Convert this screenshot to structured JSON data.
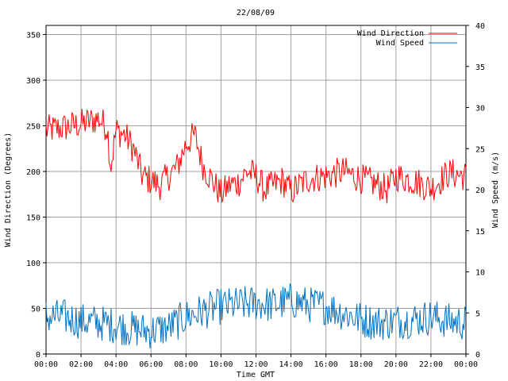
{
  "chart_data": {
    "type": "line",
    "title": "22/08/09",
    "xlabel": "Time GMT",
    "ylabel_left": "Wind Direction (Degrees)",
    "ylabel_right": "Wind Speed (m/s)",
    "x_ticks": [
      "00:00",
      "02:00",
      "04:00",
      "06:00",
      "08:00",
      "10:00",
      "12:00",
      "14:00",
      "16:00",
      "18:00",
      "20:00",
      "22:00",
      "00:00"
    ],
    "x_range_hours": [
      0,
      24
    ],
    "ylim_left": [
      0,
      360
    ],
    "yticks_left": [
      0,
      50,
      100,
      150,
      200,
      250,
      300,
      350
    ],
    "ylim_right": [
      0,
      40
    ],
    "yticks_right": [
      0,
      5,
      10,
      15,
      20,
      25,
      30,
      35,
      40
    ],
    "grid": true,
    "legend_position": "top-right",
    "series": [
      {
        "name": "Wind Direction",
        "axis": "left",
        "color": "#ff0000",
        "x_hours": [
          0,
          1,
          2,
          3,
          3.5,
          3.7,
          4,
          4.5,
          5,
          5.5,
          6,
          6.5,
          7,
          7.5,
          8,
          8.5,
          9,
          9.5,
          10,
          10.5,
          11,
          11.5,
          12,
          12.5,
          13,
          13.5,
          14,
          15,
          16,
          17,
          18,
          19,
          19.5,
          20,
          21,
          22,
          23,
          24
        ],
        "values": [
          245,
          248,
          252,
          258,
          248,
          205,
          245,
          240,
          225,
          195,
          190,
          185,
          195,
          205,
          230,
          240,
          205,
          190,
          175,
          185,
          188,
          200,
          195,
          180,
          185,
          190,
          178,
          192,
          195,
          200,
          192,
          185,
          180,
          195,
          190,
          182,
          198,
          195
        ]
      },
      {
        "name": "Wind Speed",
        "axis": "right",
        "color": "#0070c0",
        "x_hours": [
          0,
          1,
          2,
          3,
          4,
          5,
          6,
          7,
          8,
          9,
          10,
          11,
          12,
          13,
          14,
          15,
          16,
          17,
          18,
          19,
          20,
          21,
          22,
          23,
          24
        ],
        "values": [
          4.5,
          4.5,
          4.0,
          3.8,
          3.5,
          3.0,
          2.8,
          3.2,
          4.5,
          5.2,
          5.8,
          6.0,
          6.2,
          6.0,
          6.5,
          6.0,
          5.8,
          5.0,
          4.2,
          3.8,
          4.0,
          4.2,
          4.5,
          4.0,
          3.8
        ]
      }
    ]
  }
}
